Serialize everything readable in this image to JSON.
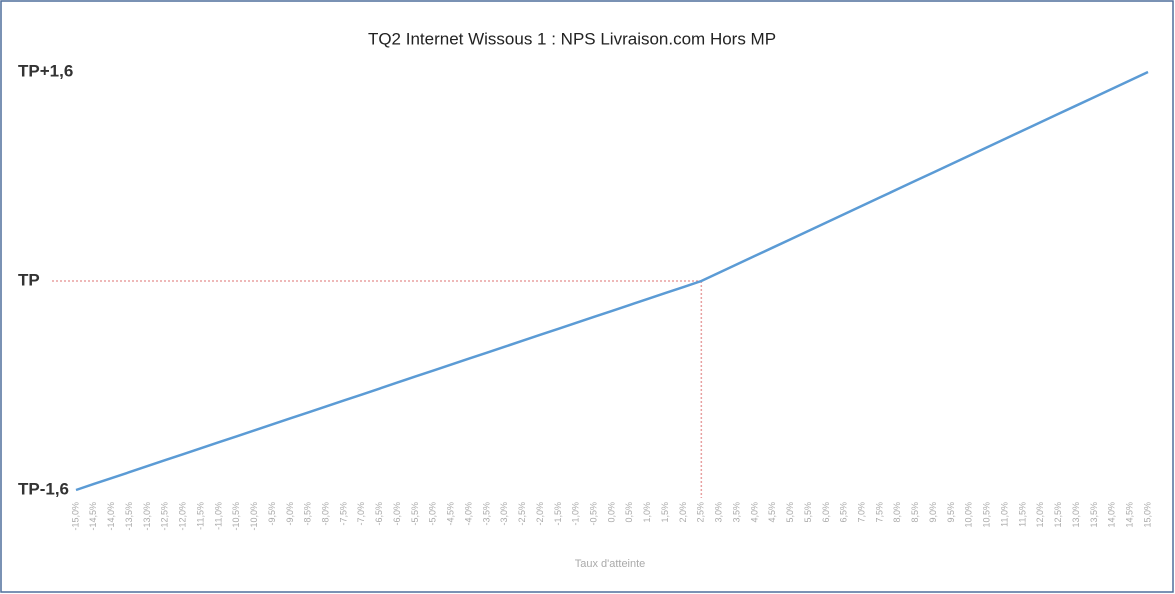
{
  "chart_data": {
    "type": "line",
    "title": "TQ2 Internet Wissous 1 : NPS Livraison.com Hors MP",
    "x_label": "Taux d'atteinte",
    "categories": [
      "-15,0%",
      "-14,5%",
      "-14,0%",
      "-13,5%",
      "-13,0%",
      "-12,5%",
      "-12,0%",
      "-11,5%",
      "-11,0%",
      "-10,5%",
      "-10,0%",
      "-9,5%",
      "-9,0%",
      "-8,5%",
      "-8,0%",
      "-7,5%",
      "-7,0%",
      "-6,5%",
      "-6,0%",
      "-5,5%",
      "-5,0%",
      "-4,5%",
      "-4,0%",
      "-3,5%",
      "-3,0%",
      "-2,5%",
      "-2,0%",
      "-1,5%",
      "-1,0%",
      "-0,5%",
      "0,0%",
      "0,5%",
      "1,0%",
      "1,5%",
      "2,0%",
      "2,5%",
      "3,0%",
      "3,5%",
      "4,0%",
      "4,5%",
      "5,0%",
      "5,5%",
      "6,0%",
      "6,5%",
      "7,0%",
      "7,5%",
      "8,0%",
      "8,5%",
      "9,0%",
      "9,5%",
      "10,0%",
      "10,5%",
      "11,0%",
      "11,5%",
      "12,0%",
      "12,5%",
      "13,0%",
      "13,5%",
      "14,0%",
      "14,5%",
      "15,0%"
    ],
    "series": [
      {
        "name": "NPS",
        "color": "#5b9bd5",
        "values": [
          -1.6,
          -1.554,
          -1.509,
          -1.463,
          -1.417,
          -1.371,
          -1.326,
          -1.28,
          -1.234,
          -1.189,
          -1.143,
          -1.097,
          -1.051,
          -1.006,
          -0.96,
          -0.914,
          -0.869,
          -0.823,
          -0.777,
          -0.731,
          -0.686,
          -0.64,
          -0.594,
          -0.549,
          -0.503,
          -0.457,
          -0.411,
          -0.366,
          -0.32,
          -0.274,
          -0.229,
          -0.183,
          -0.137,
          -0.091,
          -0.046,
          0,
          0.064,
          0.128,
          0.192,
          0.256,
          0.32,
          0.384,
          0.448,
          0.512,
          0.576,
          0.64,
          0.704,
          0.768,
          0.832,
          0.896,
          0.96,
          1.024,
          1.088,
          1.152,
          1.216,
          1.28,
          1.344,
          1.408,
          1.472,
          1.536,
          1.6
        ]
      }
    ],
    "ylim": [
      -1.6,
      1.6
    ],
    "yticks": [
      {
        "value": -1.6,
        "label": "TP-1,6"
      },
      {
        "value": 0,
        "label": "TP"
      },
      {
        "value": 1.6,
        "label": "TP+1,6"
      }
    ],
    "reference_color": "#e8a0a0"
  }
}
